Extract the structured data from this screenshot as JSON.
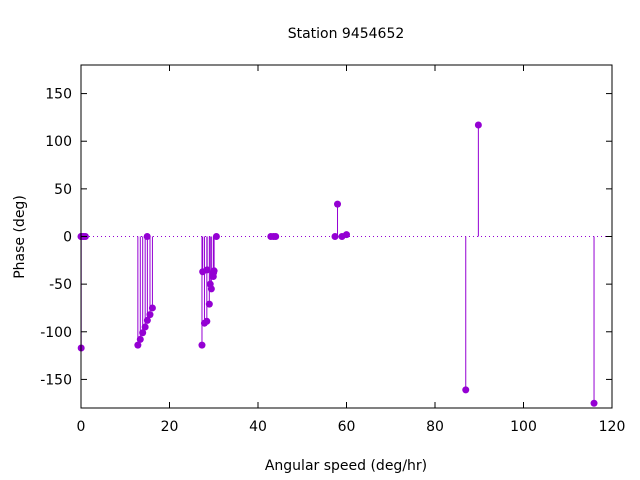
{
  "chart_data": {
    "type": "stem",
    "title": "Station 9454652",
    "xlabel": "Angular speed (deg/hr)",
    "ylabel": "Phase (deg)",
    "xlim": [
      0,
      120
    ],
    "ylim": [
      -180,
      180
    ],
    "xticks": [
      0,
      20,
      40,
      60,
      80,
      100,
      120
    ],
    "yticks": [
      -150,
      -100,
      -50,
      0,
      50,
      100,
      150
    ],
    "color": "#9400d3",
    "zero_line": "dotted",
    "grid": false,
    "legend": "none",
    "points": [
      {
        "x": 0.0,
        "y": 0
      },
      {
        "x": 0.04,
        "y": -117
      },
      {
        "x": 0.08,
        "y": 0
      },
      {
        "x": 0.5,
        "y": 0
      },
      {
        "x": 0.55,
        "y": 0
      },
      {
        "x": 1.0,
        "y": 0
      },
      {
        "x": 12.85,
        "y": -114
      },
      {
        "x": 13.4,
        "y": -108
      },
      {
        "x": 13.94,
        "y": -101
      },
      {
        "x": 14.5,
        "y": -95
      },
      {
        "x": 14.96,
        "y": 0
      },
      {
        "x": 15.0,
        "y": -88
      },
      {
        "x": 15.59,
        "y": -82
      },
      {
        "x": 16.14,
        "y": -75
      },
      {
        "x": 27.34,
        "y": -114
      },
      {
        "x": 27.5,
        "y": -37
      },
      {
        "x": 27.9,
        "y": -91
      },
      {
        "x": 28.44,
        "y": -89
      },
      {
        "x": 28.51,
        "y": -35
      },
      {
        "x": 29.0,
        "y": -71
      },
      {
        "x": 29.2,
        "y": -50
      },
      {
        "x": 29.46,
        "y": -55
      },
      {
        "x": 29.9,
        "y": -42
      },
      {
        "x": 29.96,
        "y": -38
      },
      {
        "x": 30.08,
        "y": -36
      },
      {
        "x": 30.6,
        "y": 0
      },
      {
        "x": 42.9,
        "y": 0
      },
      {
        "x": 43.5,
        "y": 0
      },
      {
        "x": 44.0,
        "y": 0
      },
      {
        "x": 57.4,
        "y": 0
      },
      {
        "x": 57.97,
        "y": 34
      },
      {
        "x": 58.98,
        "y": 0
      },
      {
        "x": 60.0,
        "y": 2
      },
      {
        "x": 86.95,
        "y": -161
      },
      {
        "x": 89.8,
        "y": 117
      },
      {
        "x": 115.94,
        "y": -175
      }
    ]
  }
}
